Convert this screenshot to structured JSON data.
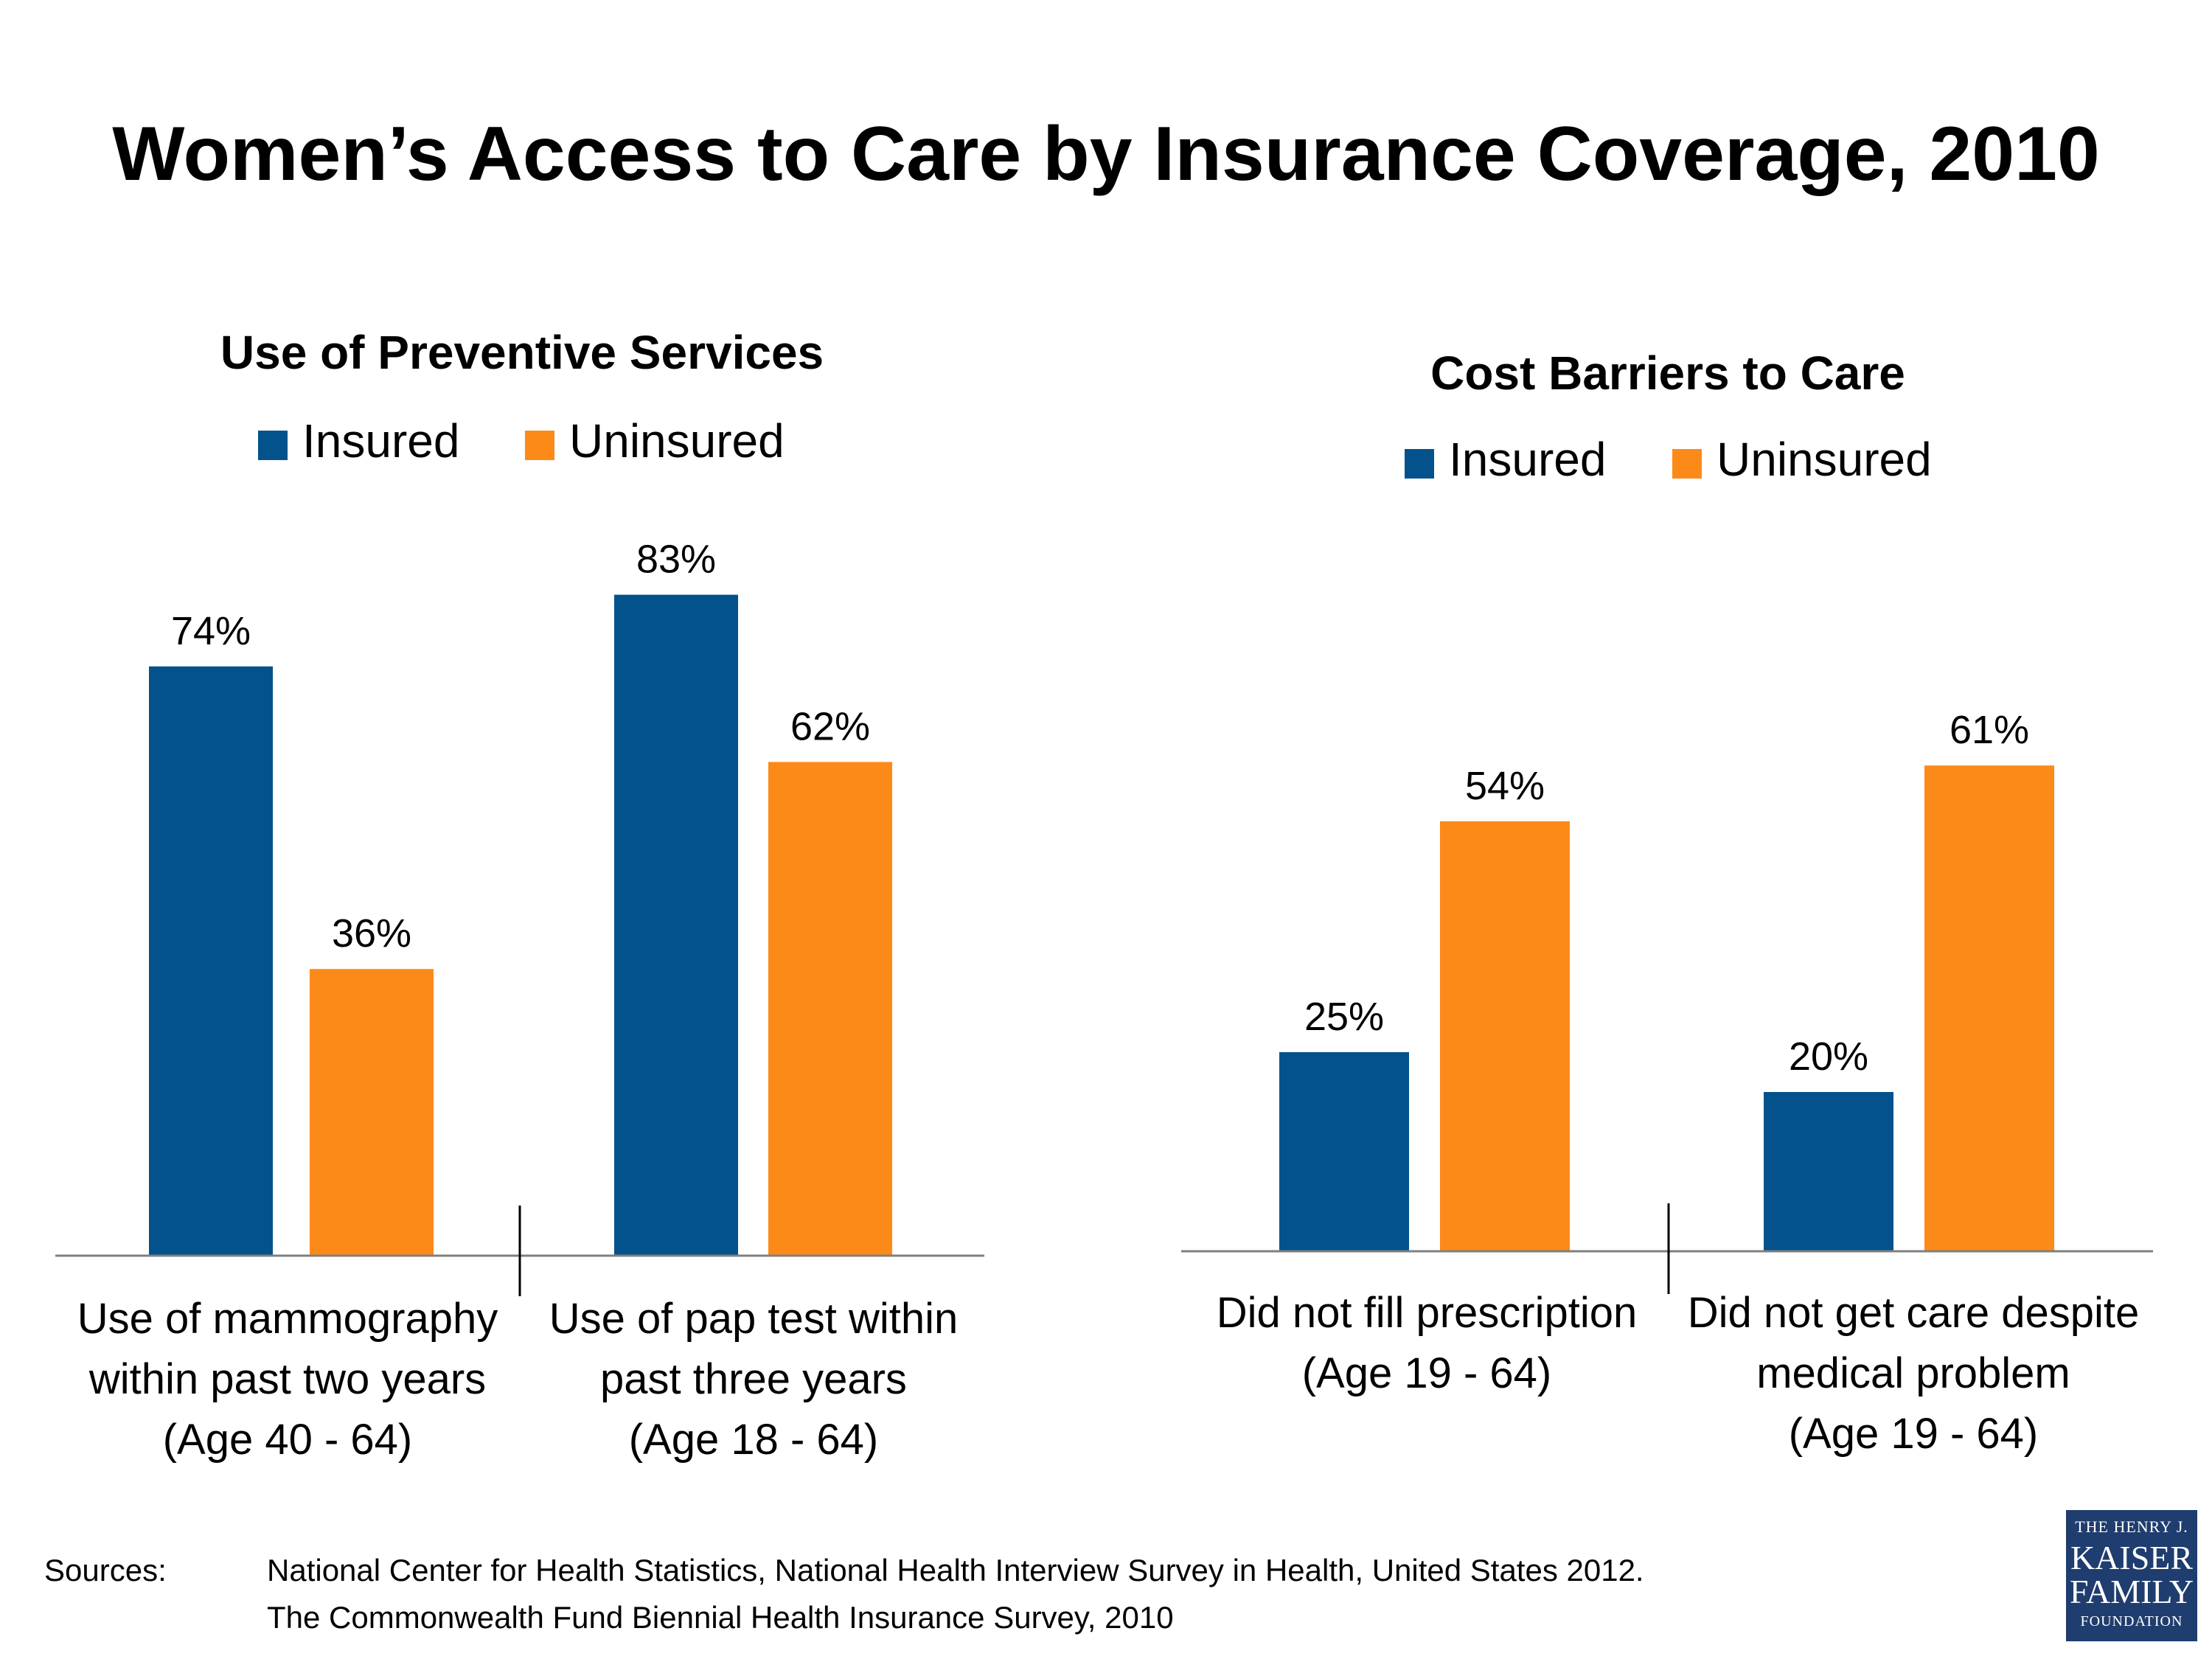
{
  "title": "Women’s Access to Care by Insurance Coverage, 2010",
  "colors": {
    "insured": "#03528c",
    "uninsured": "#fc8a19",
    "axis": "#7f7f7f"
  },
  "chart_data": [
    {
      "type": "bar",
      "title": "Use of Preventive Services",
      "categories": [
        [
          "Use of mammography",
          "within past two years",
          "(Age 40 - 64)"
        ],
        [
          "Use of pap test within",
          "past three years",
          "(Age 18 - 64)"
        ]
      ],
      "series": [
        {
          "name": "Insured",
          "values": [
            74,
            83
          ],
          "color": "#03528c"
        },
        {
          "name": "Uninsured",
          "values": [
            36,
            62
          ],
          "color": "#fc8a19"
        }
      ],
      "value_labels": [
        [
          "74%",
          "83%"
        ],
        [
          "36%",
          "62%"
        ]
      ],
      "ylim": [
        0,
        100
      ],
      "legend": "top",
      "grid": false
    },
    {
      "type": "bar",
      "title": "Cost Barriers to Care",
      "categories": [
        [
          "Did not fill prescription",
          "(Age 19 - 64)"
        ],
        [
          "Did not get care despite",
          "medical problem",
          "(Age 19 - 64)"
        ]
      ],
      "series": [
        {
          "name": "Insured",
          "values": [
            25,
            20
          ],
          "color": "#03528c"
        },
        {
          "name": "Uninsured",
          "values": [
            54,
            61
          ],
          "color": "#fc8a19"
        }
      ],
      "value_labels": [
        [
          "25%",
          "20%"
        ],
        [
          "54%",
          "61%"
        ]
      ],
      "ylim": [
        0,
        100
      ],
      "legend": "top",
      "grid": false
    }
  ],
  "sources": {
    "label": "Sources:",
    "lines": [
      "National Center for Health Statistics, National Health Interview Survey in Health, United States 2012.",
      "The Commonwealth Fund Biennial Health Insurance Survey, 2010"
    ]
  },
  "logo": {
    "line1": "THE HENRY J.",
    "line2": "KAISER",
    "line3": "FAMILY",
    "line4": "FOUNDATION"
  }
}
